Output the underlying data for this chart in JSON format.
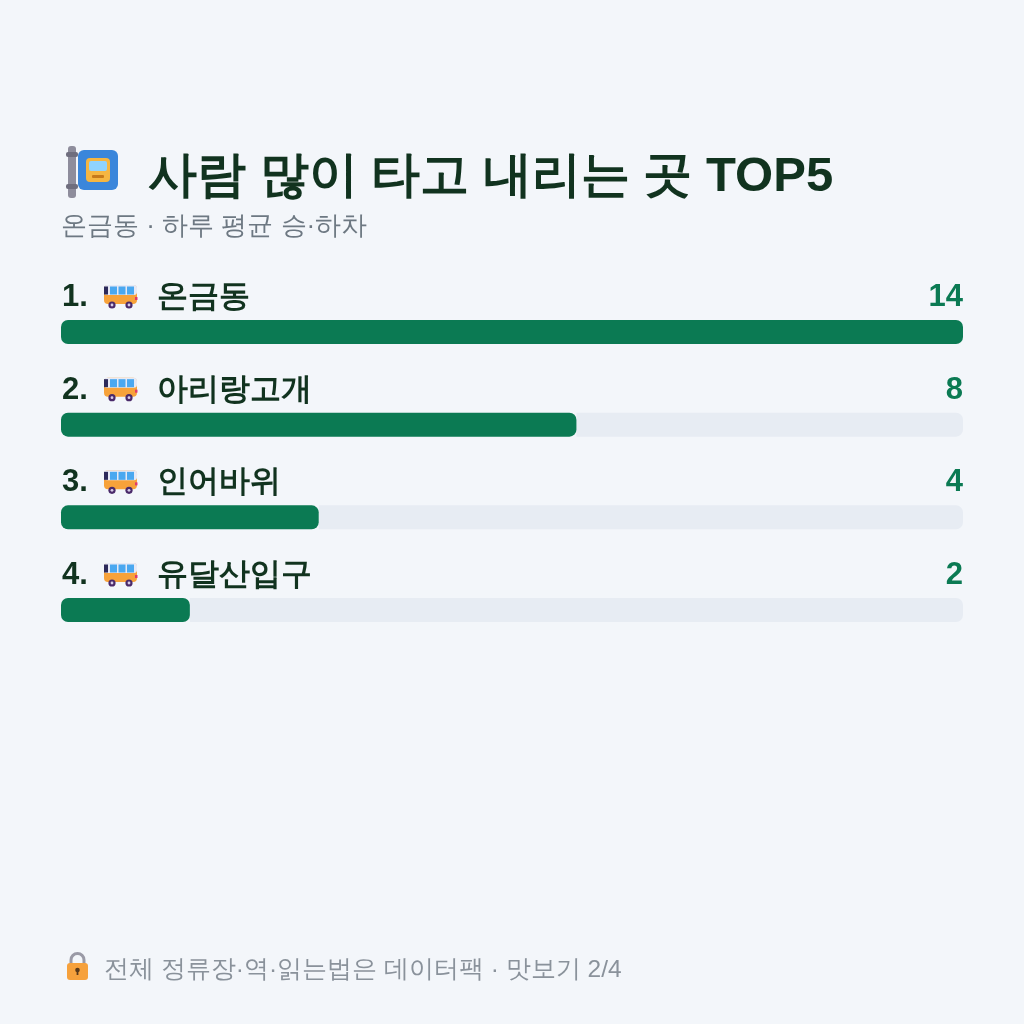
{
  "chart_data": {
    "type": "bar",
    "orientation": "horizontal",
    "title": "사람 많이 타고 내리는 곳 TOP5",
    "subtitle": "온금동 · 하루 평균 승·하차",
    "categories": [
      "1. 온금동",
      "2. 아리랑고개",
      "3. 인어바위",
      "4. 유달산입구"
    ],
    "values": [
      14,
      8,
      4,
      2
    ],
    "color": "#0b7a53",
    "data_labels": true,
    "annotations": [
      "전체 정류장·역·읽는법은 데이터팩 · 맛보기 2/4"
    ]
  }
}
